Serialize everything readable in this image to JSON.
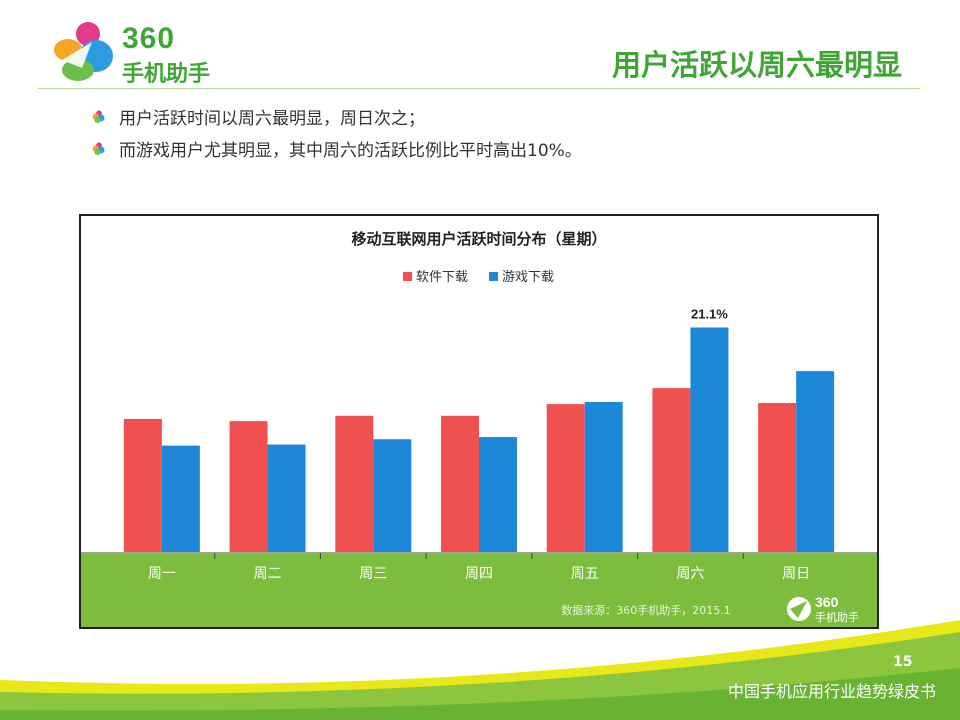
{
  "logo": {
    "number": "360",
    "name": "手机助手"
  },
  "slide_title": "用户活跃以周六最明显",
  "bullets": [
    "用户活跃时间以周六最明显，周日次之；",
    "而游戏用户尤其明显，其中周六的活跃比例比平时高出10%。"
  ],
  "chart_data": {
    "type": "bar",
    "title": "移动互联网用户活跃时间分布（星期）",
    "categories": [
      "周一",
      "周二",
      "周三",
      "周四",
      "周五",
      "周六",
      "周日"
    ],
    "series": [
      {
        "name": "软件下载",
        "color": "#f05050",
        "values": [
          12.5,
          12.3,
          12.8,
          12.8,
          13.9,
          15.4,
          14.0
        ]
      },
      {
        "name": "游戏下载",
        "color": "#1e88d8",
        "values": [
          10.0,
          10.1,
          10.6,
          10.8,
          14.1,
          21.1,
          17.0
        ]
      }
    ],
    "data_labels": [
      {
        "series": 1,
        "index": 5,
        "text": "21.1%"
      }
    ],
    "ylim": [
      0,
      25
    ],
    "legend_position": "top-center",
    "grid": false,
    "axis_band_color": "#7dbd3d",
    "source_note": "数据来源：360手机助手，2015.1",
    "watermark_logo": {
      "number": "360",
      "name": "手机助手"
    }
  },
  "page_number": "15",
  "footer": "中国手机应用行业趋势绿皮书",
  "colors": {
    "brand_green": "#3fa535",
    "footer_green": "#8cc63f",
    "footer_yellow": "#e6e600"
  }
}
